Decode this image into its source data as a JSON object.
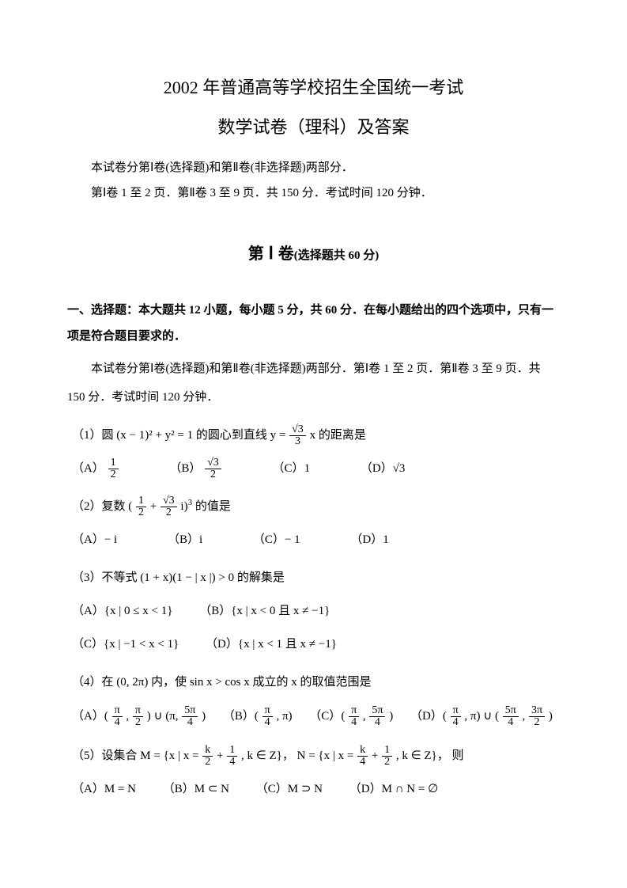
{
  "colors": {
    "text": "#000000",
    "bg": "#ffffff"
  },
  "fonts": {
    "body": "SimSun / serif",
    "math": "Times New Roman"
  },
  "title1": "2002 年普通高等学校招生全国统一考试",
  "title2": "数学试卷（理科）及答案",
  "intro1": "本试卷分第Ⅰ卷(选择题)和第Ⅱ卷(非选择题)两部分．",
  "intro2": "第Ⅰ卷 1 至 2 页．第Ⅱ卷 3 至 9 页．共 150 分．考试时间 120 分钟．",
  "section": {
    "prefix": "第",
    "roman": "Ⅰ",
    "word": "卷",
    "paren": "(选择题共 60 分)"
  },
  "prompt": "一、选择题：本大题共 12 小题，每小题 5 分，共 60 分．在每小题给出的四个选项中，只有一项是符合题目要求的．",
  "para1": "本试卷分第Ⅰ卷(选择题)和第Ⅱ卷(非选择题)两部分．第Ⅰ卷 1 至 2 页．第Ⅱ卷 3 至 9 页．共 150 分．考试时间 120 分钟．",
  "q1": {
    "stem_pre": "（1）圆",
    "stem_math": "(x − 1)² + y² = 1",
    "stem_mid": "的圆心到直线 ",
    "stem_rhs": " 的距离是",
    "line_y_eq": "y =",
    "frac_num": "√3",
    "frac_den": "3",
    "x": "x",
    "opts": {
      "A": {
        "label": "（A）",
        "num": "1",
        "den": "2"
      },
      "B": {
        "label": "（B）",
        "num": "√3",
        "den": "2"
      },
      "C": {
        "label": "（C）",
        "val": "1"
      },
      "D": {
        "label": "（D）",
        "val": "√3"
      }
    }
  },
  "q2": {
    "stem_pre": "（2）复数",
    "frac1_num": "1",
    "frac1_den": "2",
    "plus": "+",
    "frac2_num": "√3",
    "frac2_den": "2",
    "i": "i",
    "pow": "3",
    "stem_post": "的值是",
    "opts": {
      "A": {
        "label": "（A）",
        "val": "− i"
      },
      "B": {
        "label": "（B）",
        "val": "i"
      },
      "C": {
        "label": "（C）",
        "val": "− 1"
      },
      "D": {
        "label": "（D）",
        "val": "1"
      }
    }
  },
  "q3": {
    "stem": "（3）不等式 (1 + x)(1 − | x |) > 0 的解集是",
    "opts": {
      "A": {
        "label": "（A）",
        "val": "{x | 0 ≤ x < 1}"
      },
      "B": {
        "label": "（B）",
        "val": "{x | x < 0 且 x ≠ −1}"
      },
      "C": {
        "label": "（C）",
        "val": "{x | −1 < x < 1}"
      },
      "D": {
        "label": "（D）",
        "val": "{x | x < 1 且 x ≠ −1}"
      }
    }
  },
  "q4": {
    "stem": "（4）在 (0, 2π) 内，使 sin x > cos x 成立的 x 的取值范围是",
    "opts": {
      "A": {
        "label": "（A）",
        "pre": "(",
        "a_num": "π",
        "a_den": "4",
        "comma": ",",
        "b_num": "π",
        "b_den": "2",
        "mid": ") ∪ (π,",
        "c_num": "5π",
        "c_den": "4",
        "post": ")"
      },
      "B": {
        "label": "（B）",
        "pre": "(",
        "a_num": "π",
        "a_den": "4",
        "comma": ", π)",
        "post": ""
      },
      "C": {
        "label": "（C）",
        "pre": "(",
        "a_num": "π",
        "a_den": "4",
        "comma": ",",
        "b_num": "5π",
        "b_den": "4",
        "post": ")"
      },
      "D": {
        "label": "（D）",
        "pre": "(",
        "a_num": "π",
        "a_den": "4",
        "mid": ", π) ∪ (",
        "b_num": "5π",
        "b_den": "4",
        "comma": ",",
        "c_num": "3π",
        "c_den": "2",
        "post": ")"
      }
    }
  },
  "q5": {
    "stem_pre": "（5）设集合 ",
    "M": "M = {x | x =",
    "Mf1_num": "k",
    "Mf1_den": "2",
    "Mplus": "+",
    "Mf2_num": "1",
    "Mf2_den": "4",
    "Mpost": ", k ∈ Z}，",
    "N": "N = {x | x =",
    "Nf1_num": "k",
    "Nf1_den": "4",
    "Nplus": "+",
    "Nf2_num": "1",
    "Nf2_den": "2",
    "Npost": ", k ∈ Z}，",
    "then": "则",
    "opts": {
      "A": {
        "label": "（A）",
        "val": "M = N"
      },
      "B": {
        "label": "（B）",
        "val": "M ⊂ N"
      },
      "C": {
        "label": "（C）",
        "val": "M ⊃ N"
      },
      "D": {
        "label": "（D）",
        "val": "M ∩ N = ∅"
      }
    }
  }
}
